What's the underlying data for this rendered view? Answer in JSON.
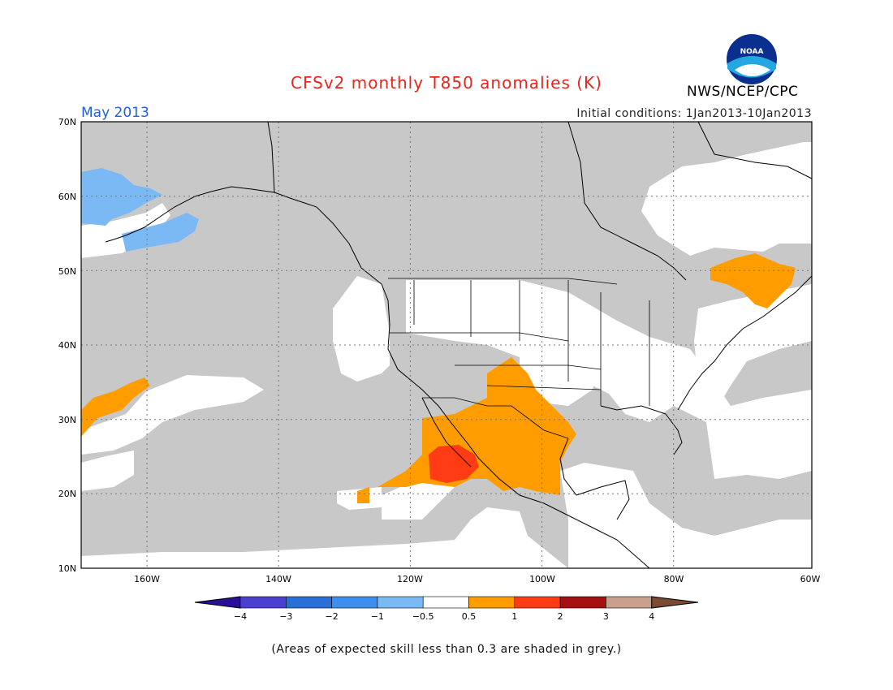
{
  "title": "CFSv2 monthly T850 anomalies (K)",
  "month_label": "May 2013",
  "initial_conditions": "Initial conditions: 1Jan2013-10Jan2013",
  "agency": "NWS/NCEP/CPC",
  "logo_text": "NOAA",
  "footnote": "(Areas of expected skill less than 0.3 are shaded in grey.)",
  "map": {
    "lon_range": [
      -171,
      -60
    ],
    "lat_range": [
      10,
      70
    ],
    "lat_ticks": [
      "70N",
      "60N",
      "50N",
      "40N",
      "30N",
      "20N",
      "10N"
    ],
    "lon_ticks": [
      "160W",
      "140W",
      "120W",
      "100W",
      "80W",
      "60W"
    ],
    "grid": "dotted"
  },
  "colorbar": {
    "labels": [
      "−4",
      "−3",
      "−2",
      "−1",
      "−0.5",
      "0.5",
      "1",
      "2",
      "3",
      "4"
    ],
    "colors": [
      "#2a0f9a",
      "#4a3fcf",
      "#2a6fd8",
      "#3c8ff0",
      "#7bb9f5",
      "#ffffff",
      "#ff9c00",
      "#ff3c14",
      "#a50f0f",
      "#c8a08c",
      "#7a4a32"
    ]
  },
  "colors": {
    "grey_skill": "#c8c8c8",
    "anomaly_light_blue": "#7bb9f5",
    "anomaly_orange": "#ff9c00",
    "anomaly_red": "#ff3c14",
    "title": "#e5261b",
    "month": "#1f5fe0"
  }
}
